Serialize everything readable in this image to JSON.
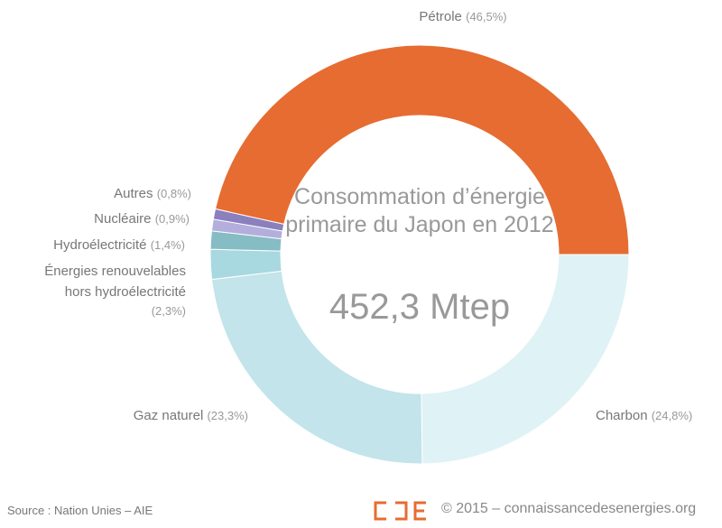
{
  "chart_data": {
    "type": "pie",
    "title": "Consommation d’énergie primaire du Japon en 2012",
    "total": "452,3 Mtep",
    "categories": [
      "Charbon",
      "Gaz naturel",
      "Énergies renouvelables hors hydroélectricité",
      "Hydroélectricité",
      "Nucléaire",
      "Autres",
      "Pétrole"
    ],
    "values": [
      24.8,
      23.3,
      2.3,
      1.4,
      0.9,
      0.8,
      46.5
    ],
    "value_labels": [
      "(24,8%)",
      "(23,3%)",
      "(2,3%)",
      "(1,4%)",
      "(0,9%)",
      "(0,8%)",
      "(46,5%)"
    ],
    "colors": [
      "#dff2f5",
      "#c2e4ea",
      "#a8d8e0",
      "#86bcc4",
      "#b3aedc",
      "#8a80bd",
      "#e66c32"
    ],
    "source": "Source : Nation Unies – AIE",
    "credit": "© 2015 – connaissancedesenergies.org"
  }
}
